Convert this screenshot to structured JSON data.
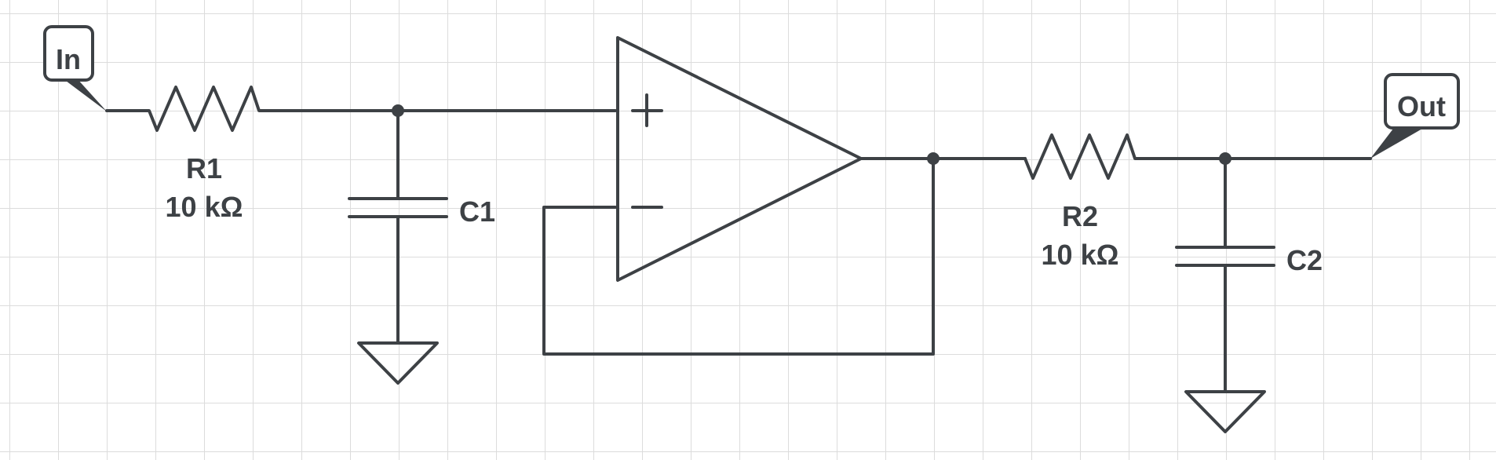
{
  "diagram": {
    "ports": {
      "input": "In",
      "output": "Out"
    },
    "components": {
      "r1": {
        "name": "R1",
        "value": "10 kΩ"
      },
      "r2": {
        "name": "R2",
        "value": "10 kΩ"
      },
      "c1": {
        "name": "C1"
      },
      "c2": {
        "name": "C2"
      }
    },
    "opamp": {
      "plus_symbol": "+",
      "minus_symbol": "—"
    }
  },
  "colors": {
    "stroke": "#3d4145",
    "grid": "#dcdcdc",
    "background": "#ffffff"
  }
}
